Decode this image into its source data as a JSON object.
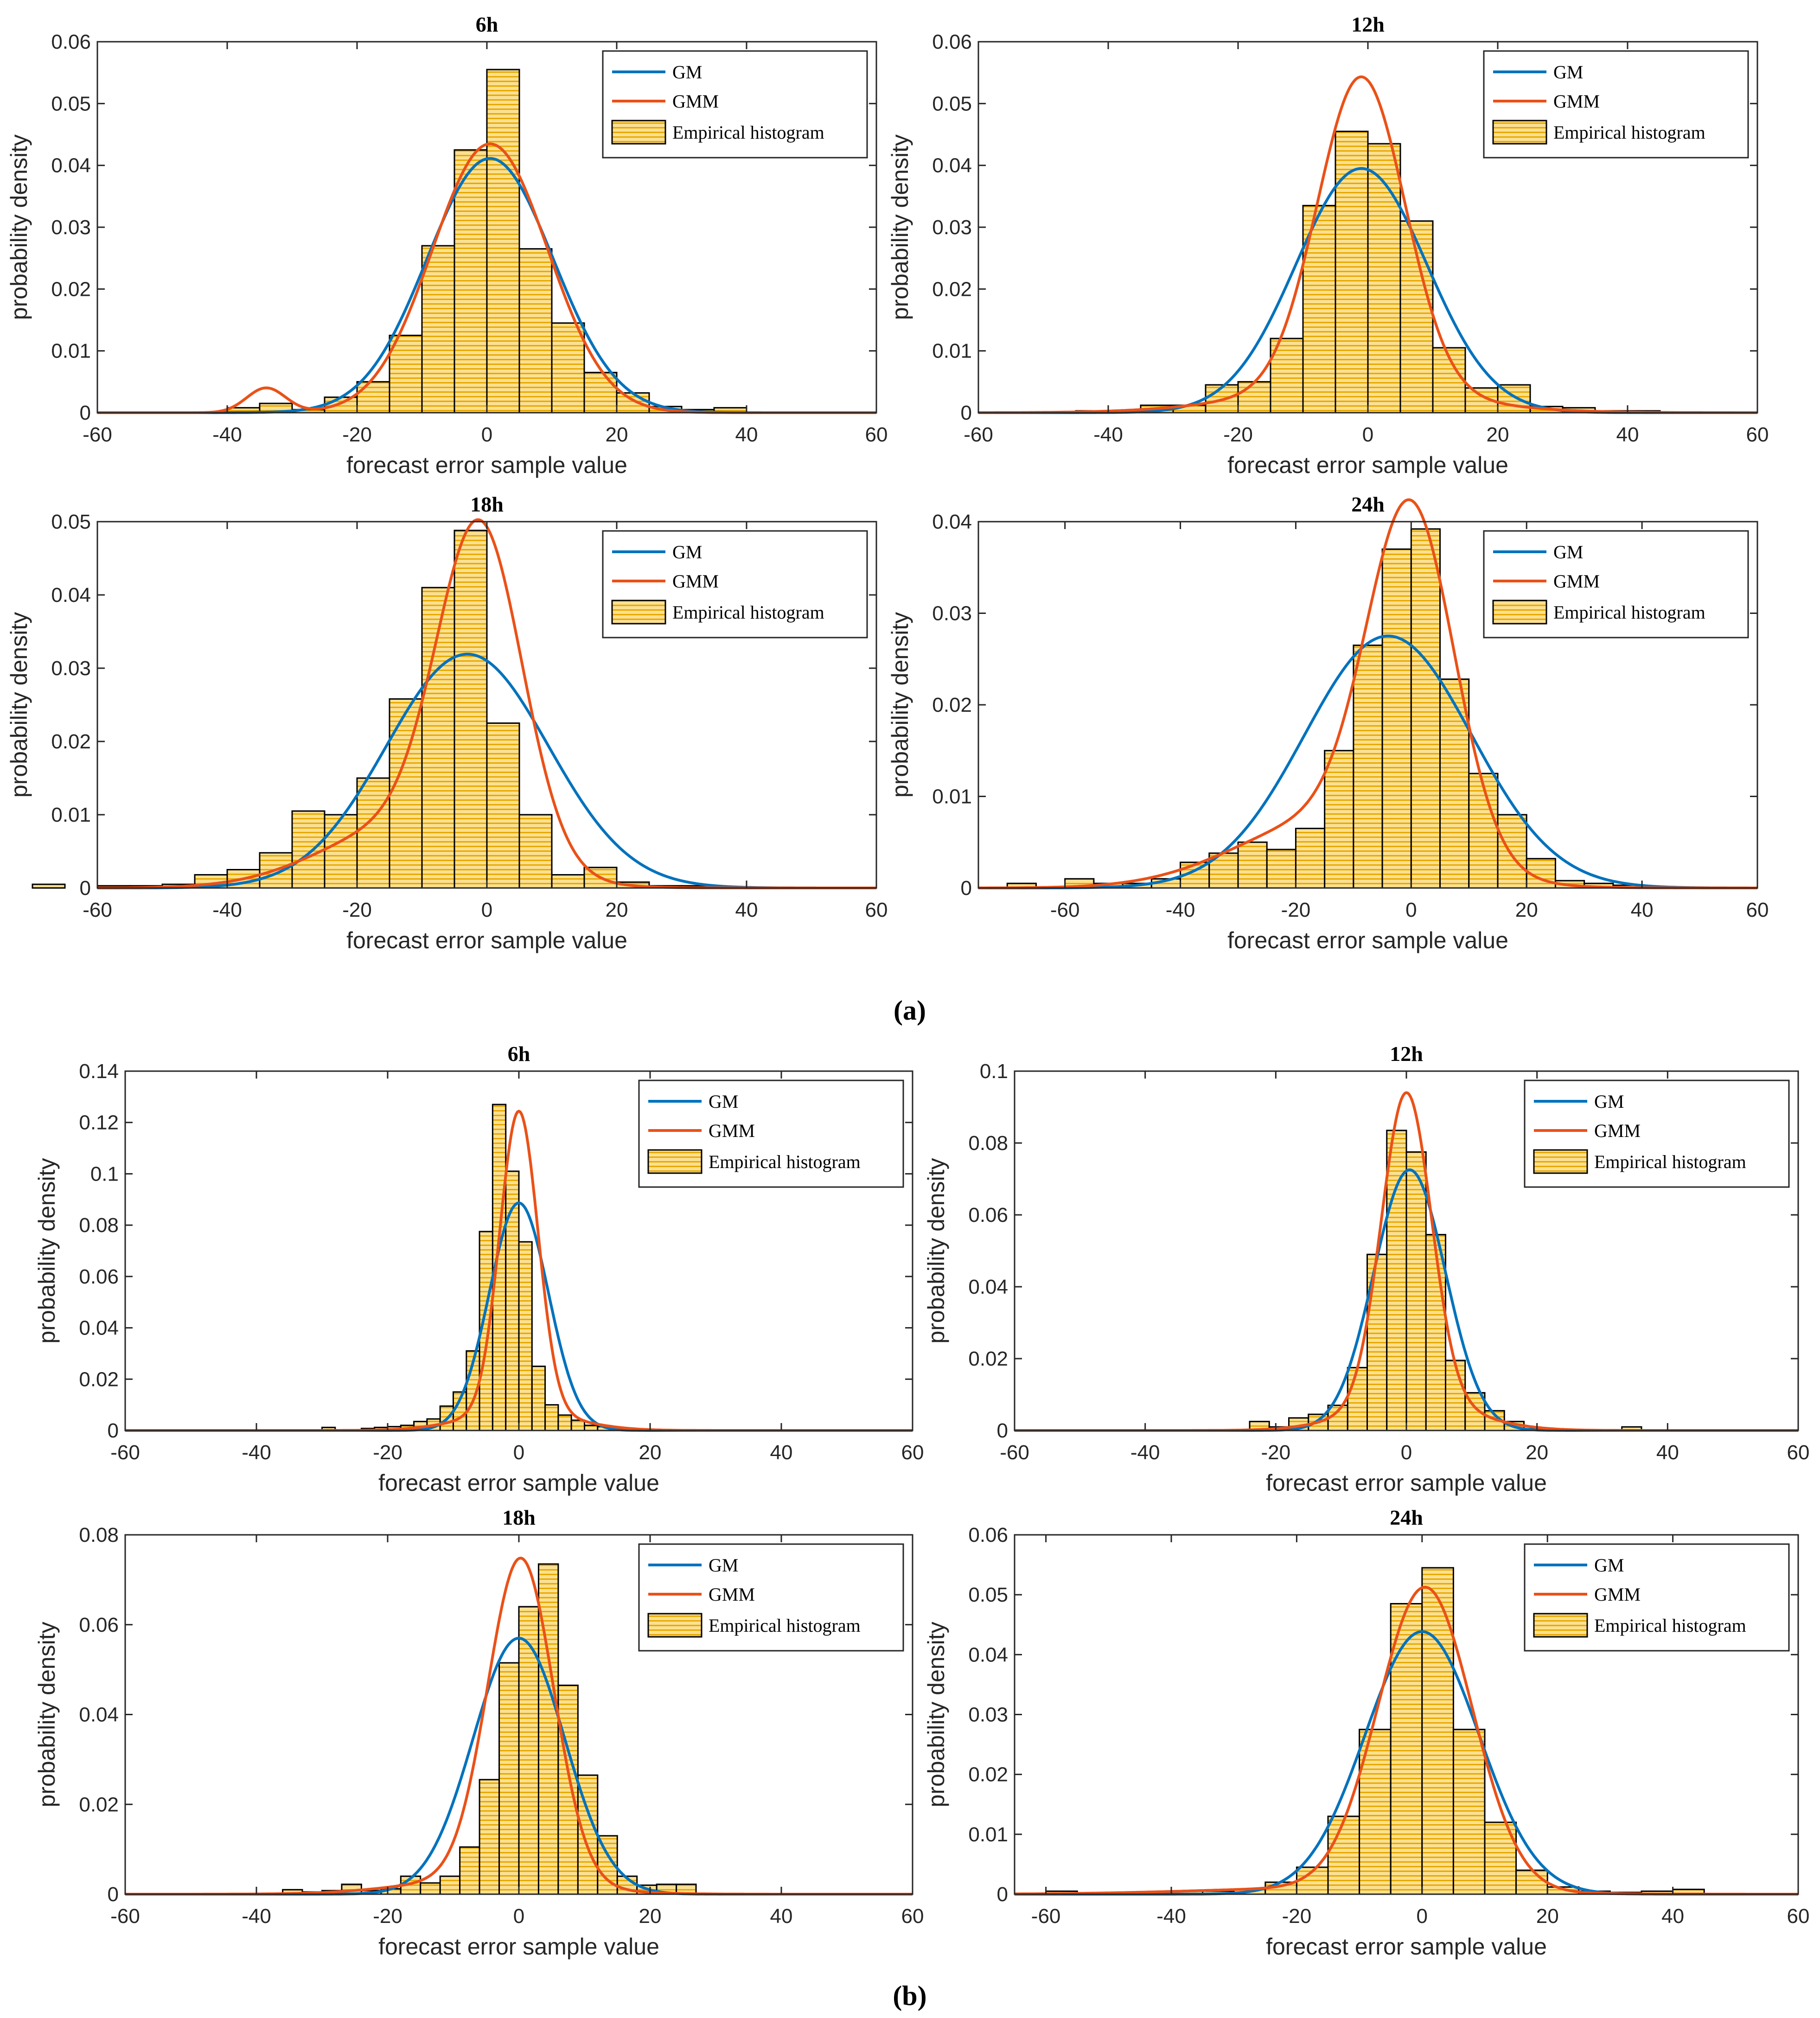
{
  "captions": {
    "a": "(a)",
    "b": "(b)"
  },
  "colors": {
    "gm": "#0072BD",
    "gmm": "#EA5118",
    "bar_fill": "#FBE091",
    "bar_stripe": "#E8A800",
    "bar_edge": "#000000",
    "gm_dashed": "#4C9A8C"
  },
  "legend_labels": {
    "gm": "GM",
    "gmm": "GMM",
    "hist": "Empirical histogram"
  },
  "chart_data": [
    {
      "id": "a-6h",
      "type": "bar",
      "title": "6h",
      "xlabel": "forecast error sample value",
      "ylabel": "probability density",
      "xlim": [
        -60,
        60
      ],
      "ylim": [
        0,
        0.06
      ],
      "xticks": [
        "-60",
        "-40",
        "-20",
        "0",
        "20",
        "40",
        "60"
      ],
      "yticks": [
        "0",
        "0.01",
        "0.02",
        "0.03",
        "0.04",
        "0.05",
        "0.06"
      ],
      "bin_start": -40,
      "bin_width": 5,
      "values": [
        0.0008,
        0.0015,
        0.0005,
        0.0025,
        0.005,
        0.0125,
        0.027,
        0.0425,
        0.0555,
        0.0265,
        0.0145,
        0.0065,
        0.0032,
        0.001,
        0.0005,
        0.0008
      ],
      "gm": {
        "mean": 0.5,
        "sigma": 9.7
      },
      "gmm": [
        {
          "w": 0.97,
          "mean": 0.5,
          "sigma": 8.9
        },
        {
          "w": 0.03,
          "mean": -34,
          "sigma": 3
        }
      ]
    },
    {
      "id": "a-12h",
      "type": "bar",
      "title": "12h",
      "xlabel": "forecast error sample value",
      "ylabel": "probability density",
      "xlim": [
        -60,
        60
      ],
      "ylim": [
        0,
        0.06
      ],
      "xticks": [
        "-60",
        "-40",
        "-20",
        "0",
        "20",
        "40",
        "60"
      ],
      "yticks": [
        "0",
        "0.01",
        "0.02",
        "0.03",
        "0.04",
        "0.05",
        "0.06"
      ],
      "bin_start": -45,
      "bin_width": 5,
      "values": [
        0.0003,
        0.0003,
        0.0012,
        0.0012,
        0.0045,
        0.005,
        0.012,
        0.0335,
        0.0455,
        0.0435,
        0.031,
        0.0105,
        0.004,
        0.0045,
        0.001,
        0.0008,
        0.0003,
        0.0003
      ],
      "gm": {
        "mean": -1,
        "sigma": 10.1
      },
      "gmm": [
        {
          "w": 0.85,
          "mean": -1,
          "sigma": 6.7
        },
        {
          "w": 0.15,
          "mean": -3,
          "sigma": 16
        }
      ]
    },
    {
      "id": "a-18h",
      "type": "bar",
      "title": "18h",
      "xlabel": "forecast error sample value",
      "ylabel": "probability density",
      "xlim": [
        -60,
        60
      ],
      "ylim": [
        0,
        0.05
      ],
      "xticks": [
        "-60",
        "-40",
        "-20",
        "0",
        "20",
        "40",
        "60"
      ],
      "yticks": [
        "0",
        "0.01",
        "0.02",
        "0.03",
        "0.04",
        "0.05"
      ],
      "bin_start": -70,
      "bin_width": 5,
      "values": [
        0.0005,
        0,
        0.0003,
        0.0003,
        0.0005,
        0.0018,
        0.0025,
        0.0048,
        0.0105,
        0.01,
        0.015,
        0.0258,
        0.041,
        0.0488,
        0.0225,
        0.01,
        0.0018,
        0.0028,
        0.0008,
        0.0003,
        0.0003
      ],
      "gm": {
        "mean": -3,
        "sigma": 12.5
      },
      "gmm": [
        {
          "w": 0.72,
          "mean": -1,
          "sigma": 6.5
        },
        {
          "w": 0.28,
          "mean": -12,
          "sigma": 13
        }
      ]
    },
    {
      "id": "a-24h",
      "type": "bar",
      "title": "24h",
      "xlabel": "forecast error sample value",
      "ylabel": "probability density",
      "xlim": [
        -75,
        60
      ],
      "ylim": [
        0,
        0.04
      ],
      "xticks": [
        "-60",
        "-40",
        "-20",
        "0",
        "20",
        "40",
        "60"
      ],
      "yticks": [
        "0",
        "0.01",
        "0.02",
        "0.03",
        "0.04"
      ],
      "bin_start": -70,
      "bin_width": 5,
      "values": [
        0.0005,
        0,
        0.001,
        0.0005,
        0.0005,
        0.001,
        0.0028,
        0.0038,
        0.005,
        0.0042,
        0.0065,
        0.015,
        0.0265,
        0.037,
        0.0392,
        0.0228,
        0.0125,
        0.008,
        0.0032,
        0.0008,
        0.0005,
        0.0003
      ],
      "gm": {
        "mean": -4,
        "sigma": 14.5
      },
      "gmm": [
        {
          "w": 0.7,
          "mean": 0,
          "sigma": 7.5
        },
        {
          "w": 0.3,
          "mean": -14,
          "sigma": 16
        }
      ]
    },
    {
      "id": "b-6h",
      "type": "bar",
      "title": "6h",
      "xlabel": "forecast error sample value",
      "ylabel": "probability density",
      "xlim": [
        -60,
        60
      ],
      "ylim": [
        0,
        0.14
      ],
      "xticks": [
        "-60",
        "-40",
        "-20",
        "0",
        "20",
        "40",
        "60"
      ],
      "yticks": [
        "0",
        "0.02",
        "0.04",
        "0.06",
        "0.08",
        "0.1",
        "0.12",
        "0.14"
      ],
      "bin_start": -30,
      "bin_width": 2,
      "values": [
        0.0012,
        0,
        0,
        0.0008,
        0.0012,
        0.0015,
        0.002,
        0.0035,
        0.0045,
        0.0095,
        0.015,
        0.031,
        0.0775,
        0.127,
        0.101,
        0.0735,
        0.025,
        0.01,
        0.006,
        0.004,
        0.002,
        0.0015,
        0.0012,
        0.0005
      ],
      "gm": {
        "mean": 0,
        "sigma": 4.5
      },
      "gmm": [
        {
          "w": 0.85,
          "mean": 0,
          "sigma": 2.9
        },
        {
          "w": 0.15,
          "mean": 0,
          "sigma": 8
        }
      ]
    },
    {
      "id": "b-12h",
      "type": "bar",
      "title": "12h",
      "xlabel": "forecast error sample value",
      "ylabel": "probability density",
      "xlim": [
        -60,
        60
      ],
      "ylim": [
        0,
        0.1
      ],
      "xticks": [
        "-60",
        "-40",
        "-20",
        "0",
        "20",
        "40",
        "60"
      ],
      "yticks": [
        "0",
        "0.02",
        "0.04",
        "0.06",
        "0.08",
        "0.1"
      ],
      "bin_start": -24,
      "bin_width": 3,
      "values": [
        0.0025,
        0.001,
        0.0035,
        0.0045,
        0.007,
        0.0175,
        0.049,
        0.0835,
        0.0775,
        0.0545,
        0.0195,
        0.0105,
        0.0055,
        0.0025,
        0.0005,
        0.0005,
        0.0003,
        0,
        0,
        0.001
      ],
      "gm": {
        "mean": 0.5,
        "sigma": 5.5
      },
      "gmm": [
        {
          "w": 0.82,
          "mean": 0,
          "sigma": 3.8
        },
        {
          "w": 0.18,
          "mean": 1,
          "sigma": 9
        }
      ]
    },
    {
      "id": "b-18h",
      "type": "bar",
      "title": "18h",
      "xlabel": "forecast error sample value",
      "ylabel": "probability density",
      "xlim": [
        -60,
        60
      ],
      "ylim": [
        0,
        0.08
      ],
      "xticks": [
        "-60",
        "-40",
        "-20",
        "0",
        "20",
        "40",
        "60"
      ],
      "yticks": [
        "0",
        "0.02",
        "0.04",
        "0.06",
        "0.08"
      ],
      "bin_start": -36,
      "bin_width": 3,
      "values": [
        0.001,
        0.0005,
        0.0008,
        0.0022,
        0.0008,
        0.0012,
        0.004,
        0.0025,
        0.004,
        0.0105,
        0.0255,
        0.0515,
        0.064,
        0.0735,
        0.0465,
        0.0265,
        0.013,
        0.004,
        0.002,
        0.0022,
        0.0022
      ],
      "gm": {
        "mean": 0,
        "sigma": 7
      },
      "gmm": [
        {
          "w": 0.9,
          "mean": 0.3,
          "sigma": 5
        },
        {
          "w": 0.1,
          "mean": -5,
          "sigma": 12
        }
      ]
    },
    {
      "id": "b-24h",
      "type": "bar",
      "title": "24h",
      "xlabel": "forecast error sample value",
      "ylabel": "probability density",
      "xlim": [
        -65,
        60
      ],
      "ylim": [
        0,
        0.06
      ],
      "xticks": [
        "-60",
        "-40",
        "-20",
        "0",
        "20",
        "40",
        "60"
      ],
      "yticks": [
        "0",
        "0.01",
        "0.02",
        "0.03",
        "0.04",
        "0.05",
        "0.06"
      ],
      "bin_start": -60,
      "bin_width": 5,
      "values": [
        0.0005,
        0.0002,
        0.0002,
        0.0002,
        0.0005,
        0.0005,
        0.0008,
        0.002,
        0.0045,
        0.013,
        0.0275,
        0.0485,
        0.0545,
        0.0275,
        0.012,
        0.004,
        0.0012,
        0.0005,
        0.0003,
        0.0005,
        0.0008
      ],
      "gm": {
        "mean": 0,
        "sigma": 9.1
      },
      "gmm": [
        {
          "w": 0.95,
          "mean": 0.5,
          "sigma": 7.5
        },
        {
          "w": 0.05,
          "mean": -15,
          "sigma": 20
        }
      ]
    }
  ]
}
